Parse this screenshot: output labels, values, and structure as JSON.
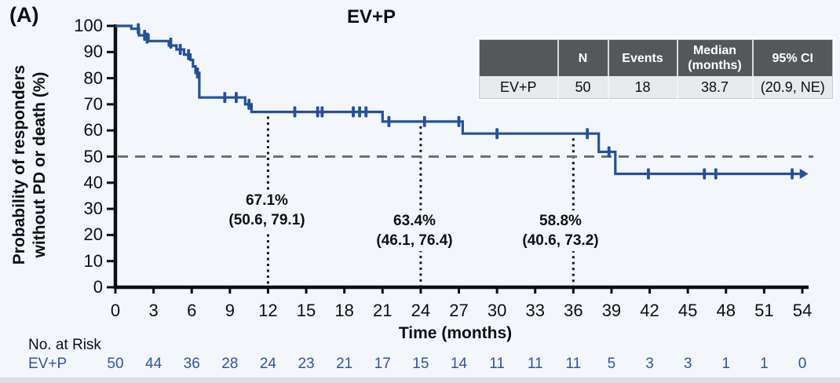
{
  "panel_label": "(A)",
  "title": "EV+P",
  "y_axis_label_line1": "Probability of responders",
  "y_axis_label_line2": "without PD or death (%)",
  "x_axis_label": "Time (months)",
  "summary_table": {
    "headers": [
      "",
      "N",
      "Events",
      "Median (months)",
      "95% CI"
    ],
    "rows": [
      [
        "EV+P",
        "50",
        "18",
        "38.7",
        "(20.9, NE)"
      ]
    ]
  },
  "no_at_risk_heading": "No. at Risk",
  "at_risk": {
    "label": "EV+P",
    "values": [
      "50",
      "44",
      "36",
      "28",
      "24",
      "23",
      "21",
      "17",
      "15",
      "14",
      "11",
      "11",
      "11",
      "5",
      "3",
      "3",
      "1",
      "1",
      "0"
    ]
  },
  "annotations": [
    {
      "value": "67.1%",
      "ci": "(50.6, 79.1)",
      "month": 12
    },
    {
      "value": "63.4%",
      "ci": "(46.1, 76.4)",
      "month": 24
    },
    {
      "value": "58.8%",
      "ci": "(40.6, 73.2)",
      "month": 36
    }
  ],
  "chart_data": {
    "type": "line",
    "subtype": "kaplan-meier-step",
    "title": "EV+P",
    "xlabel": "Time (months)",
    "ylabel": "Probability of responders without PD or death (%)",
    "xlim": [
      0,
      54
    ],
    "ylim": [
      0,
      100
    ],
    "x_ticks": [
      0,
      3,
      6,
      9,
      12,
      15,
      18,
      21,
      24,
      27,
      30,
      33,
      36,
      39,
      42,
      45,
      48,
      51,
      54
    ],
    "y_ticks": [
      0,
      10,
      20,
      30,
      40,
      50,
      60,
      70,
      80,
      90,
      100
    ],
    "grid": false,
    "reference_line_y": 50,
    "landmark_lines": [
      {
        "x": 12,
        "top_y": 67.1
      },
      {
        "x": 24,
        "top_y": 63.4
      },
      {
        "x": 36,
        "top_y": 58.8
      }
    ],
    "series": [
      {
        "name": "EV+P",
        "n": 50,
        "events": 18,
        "median_months": "38.7",
        "ci95": "(20.9, NE)",
        "step_points": [
          [
            0,
            100
          ],
          [
            1.25,
            100
          ],
          [
            1.25,
            98.9
          ],
          [
            1.85,
            98.9
          ],
          [
            1.85,
            96.4
          ],
          [
            2.6,
            96.4
          ],
          [
            2.6,
            94.2
          ],
          [
            4.2,
            94.2
          ],
          [
            4.2,
            92.5
          ],
          [
            4.8,
            92.5
          ],
          [
            4.8,
            91
          ],
          [
            5.4,
            91
          ],
          [
            5.4,
            89
          ],
          [
            5.9,
            89
          ],
          [
            5.9,
            87
          ],
          [
            6.1,
            87
          ],
          [
            6.1,
            84.5
          ],
          [
            6.3,
            84.5
          ],
          [
            6.3,
            82
          ],
          [
            6.6,
            82
          ],
          [
            6.6,
            72.6
          ],
          [
            10.2,
            72.6
          ],
          [
            10.2,
            70
          ],
          [
            10.7,
            70
          ],
          [
            10.7,
            67.1
          ],
          [
            21.0,
            67.1
          ],
          [
            21.0,
            63.4
          ],
          [
            27.3,
            63.4
          ],
          [
            27.3,
            58.8
          ],
          [
            38.0,
            58.8
          ],
          [
            38.0,
            51.8
          ],
          [
            39.3,
            51.8
          ],
          [
            39.3,
            43.4
          ],
          [
            53.8,
            43.4
          ]
        ],
        "censor_marks": [
          [
            1.8,
            98.9
          ],
          [
            2.3,
            96.4
          ],
          [
            2.5,
            95.3
          ],
          [
            4.35,
            93.4
          ],
          [
            5.1,
            91
          ],
          [
            5.75,
            89
          ],
          [
            6.45,
            82
          ],
          [
            8.6,
            72.6
          ],
          [
            9.5,
            72.6
          ],
          [
            10.5,
            70
          ],
          [
            14.1,
            67.1
          ],
          [
            15.9,
            67.1
          ],
          [
            16.25,
            67.1
          ],
          [
            18.7,
            67.1
          ],
          [
            19.2,
            67.1
          ],
          [
            19.7,
            67.1
          ],
          [
            21.5,
            63.4
          ],
          [
            24.3,
            63.4
          ],
          [
            27.0,
            63.4
          ],
          [
            30.0,
            58.8
          ],
          [
            37.1,
            58.8
          ],
          [
            38.8,
            51.8
          ],
          [
            41.9,
            43.4
          ],
          [
            46.3,
            43.4
          ],
          [
            47.2,
            43.4
          ],
          [
            53.2,
            43.4
          ]
        ],
        "end_arrow": true
      }
    ],
    "landmark_estimates": [
      {
        "month": 12,
        "rate": "67.1%",
        "ci": "(50.6, 79.1)"
      },
      {
        "month": 24,
        "rate": "63.4%",
        "ci": "(46.1, 76.4)"
      },
      {
        "month": 36,
        "rate": "58.8%",
        "ci": "(40.6, 73.2)"
      }
    ]
  },
  "colors": {
    "curve": "#24519a",
    "at_risk_text": "#2d55a3",
    "reference_dash": "#707070",
    "landmark_dot": "#15151c",
    "axis": "#0d0d12",
    "table_header_bg": "#54585a",
    "table_row_bg": "#e7e9eb",
    "background": "#f3f7fb"
  }
}
